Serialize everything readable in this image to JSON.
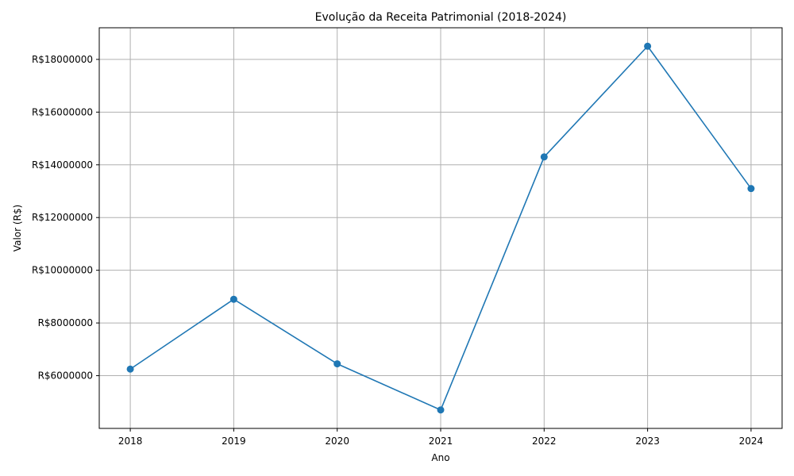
{
  "chart_data": {
    "type": "line",
    "title": "Evolução da Receita Patrimonial (2018-2024)",
    "xlabel": "Ano",
    "ylabel": "Valor (R$)",
    "x": [
      2018,
      2019,
      2020,
      2021,
      2022,
      2023,
      2024
    ],
    "x_tick_labels": [
      "2018",
      "2019",
      "2020",
      "2021",
      "2022",
      "2023",
      "2024"
    ],
    "series": [
      {
        "values": [
          6250000,
          8900000,
          6450000,
          4700000,
          14300000,
          18500000,
          13100000
        ],
        "color": "#1f77b4",
        "marker": "circle"
      }
    ],
    "y_ticks": [
      6000000,
      8000000,
      10000000,
      12000000,
      14000000,
      16000000,
      18000000
    ],
    "y_tick_labels": [
      "R$6000000",
      "R$8000000",
      "R$10000000",
      "R$12000000",
      "R$14000000",
      "R$16000000",
      "R$18000000"
    ],
    "xlim": [
      2017.7,
      2024.3
    ],
    "ylim": [
      4000000,
      19200000
    ],
    "grid": true,
    "colors": {
      "grid": "#b0b0b0",
      "axes": "#000000",
      "background": "#ffffff"
    }
  }
}
